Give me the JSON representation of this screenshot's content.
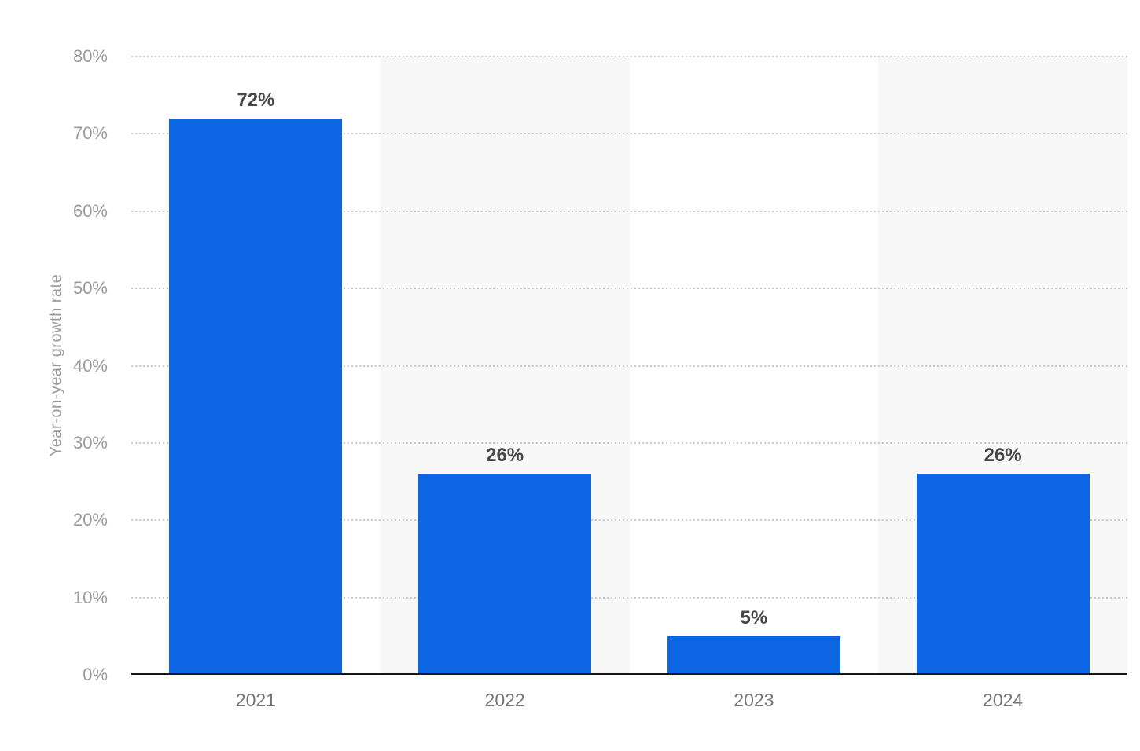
{
  "chart_data": {
    "type": "bar",
    "categories": [
      "2021",
      "2022",
      "2023",
      "2024"
    ],
    "values": [
      72,
      26,
      5,
      26
    ],
    "value_labels": [
      "72%",
      "26%",
      "5%",
      "26%"
    ],
    "title": "",
    "xlabel": "",
    "ylabel": "Year-on-year growth rate",
    "ylim": [
      0,
      80
    ],
    "ytick_step": 10,
    "ytick_labels": [
      "0%",
      "10%",
      "20%",
      "30%",
      "40%",
      "50%",
      "60%",
      "70%",
      "80%"
    ],
    "grid": "horizontal-dotted",
    "legend": "none",
    "plot_band_pattern": "alternating columns, even columns white, odd columns shaded"
  },
  "colors": {
    "bar": "#0c66e4",
    "band": "#f7f7f7",
    "background": "#ffffff",
    "gridline": "#c9c9c9",
    "axis_line": "#161616",
    "ytick_text": "#9b9b9b",
    "xtick_text": "#757575",
    "value_label_text": "#484848",
    "axis_title_text": "#9b9b9b"
  }
}
